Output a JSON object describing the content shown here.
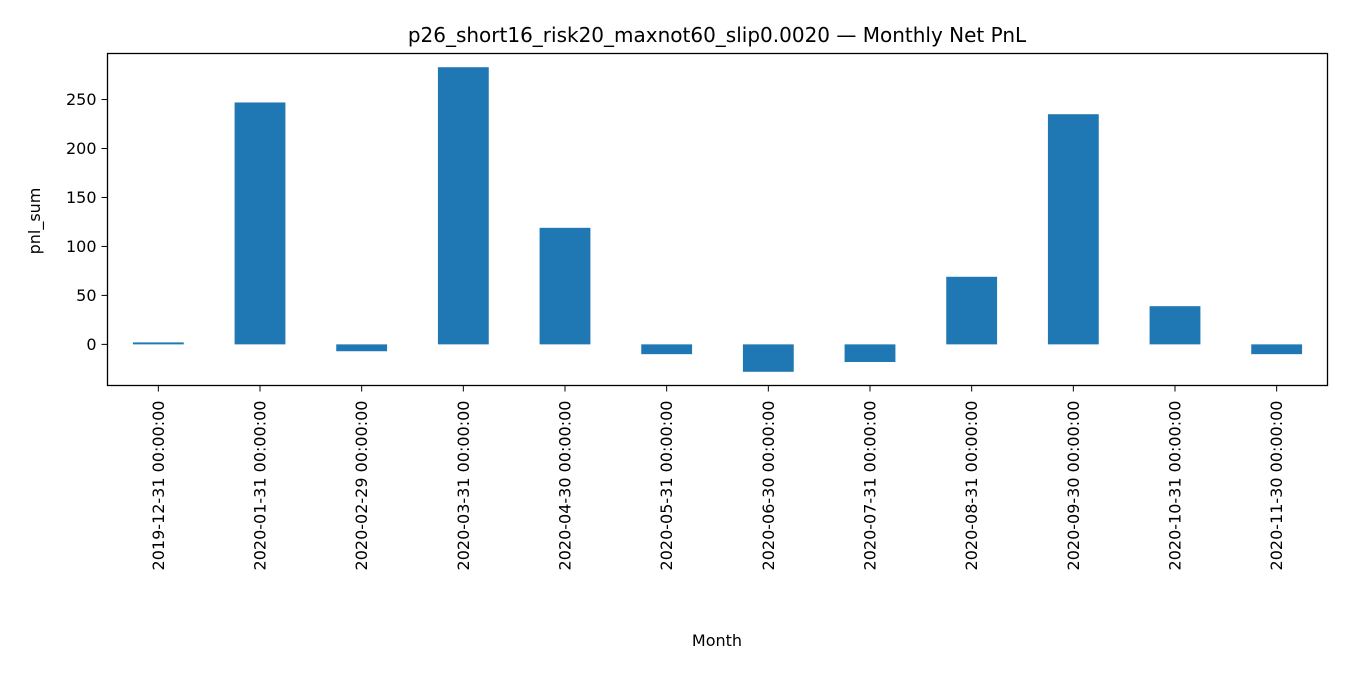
{
  "chart_data": {
    "type": "bar",
    "title": "p26_short16_risk20_maxnot60_slip0.0020 — Monthly Net PnL",
    "xlabel": "Month",
    "ylabel": "pnl_sum",
    "categories": [
      "2019-12-31 00:00:00",
      "2020-01-31 00:00:00",
      "2020-02-29 00:00:00",
      "2020-03-31 00:00:00",
      "2020-04-30 00:00:00",
      "2020-05-31 00:00:00",
      "2020-06-30 00:00:00",
      "2020-07-31 00:00:00",
      "2020-08-31 00:00:00",
      "2020-09-30 00:00:00",
      "2020-10-31 00:00:00",
      "2020-11-30 00:00:00"
    ],
    "values": [
      2,
      247,
      -7,
      283,
      119,
      -10,
      -28,
      -18,
      69,
      235,
      39,
      -10
    ],
    "ylim": [
      -42,
      297
    ],
    "yticks": [
      0,
      50,
      100,
      150,
      200,
      250
    ],
    "grid": false,
    "legend": "none",
    "bar_color": "#1f77b4"
  }
}
